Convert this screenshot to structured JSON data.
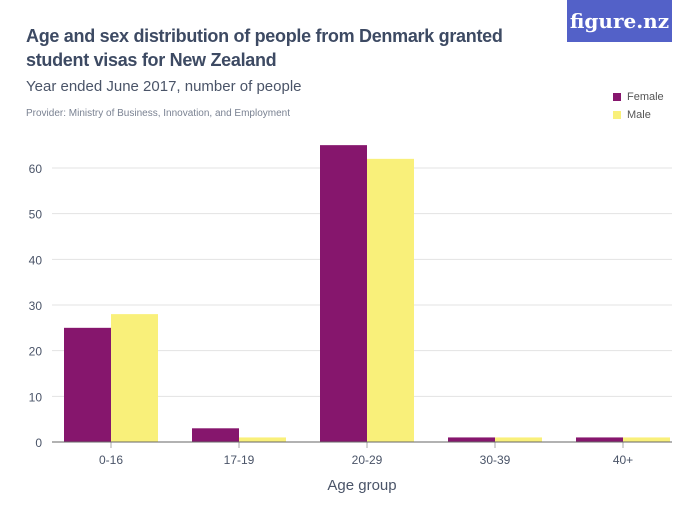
{
  "title": "Age and sex distribution of people from Denmark granted student visas for New Zealand",
  "subtitle": "Year ended June 2017, number of people",
  "provider": "Provider: Ministry of Business, Innovation, and Employment",
  "logo": "figure.nz",
  "chart_data": {
    "type": "bar",
    "categories": [
      "0-16",
      "17-19",
      "20-29",
      "30-39",
      "40+"
    ],
    "series": [
      {
        "name": "Female",
        "color": "#86166d",
        "values": [
          25,
          3,
          65,
          1,
          1
        ]
      },
      {
        "name": "Male",
        "color": "#f9f07a",
        "values": [
          28,
          1,
          62,
          1,
          1
        ]
      }
    ],
    "xlabel": "Age group",
    "ylabel": "",
    "ylim": [
      0,
      65
    ],
    "yticks": [
      0,
      10,
      20,
      30,
      40,
      50,
      60
    ],
    "grid": true,
    "legend": "top-right"
  }
}
